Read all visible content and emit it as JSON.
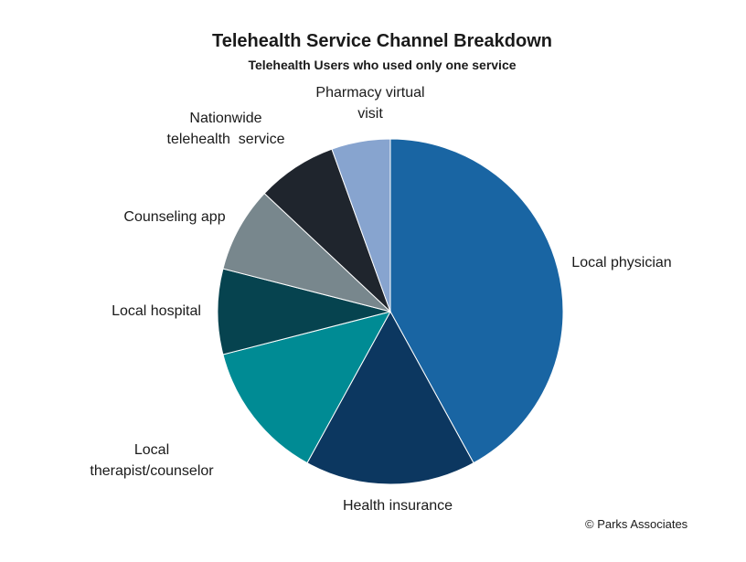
{
  "chart_data": {
    "type": "pie",
    "title": "Telehealth Service Channel Breakdown",
    "subtitle": "Telehealth Users who used only one service",
    "slices": [
      {
        "label": "Local physician",
        "lines": [
          "Local physician"
        ],
        "value": 42,
        "color": "#1965a3"
      },
      {
        "label": "Health insurance",
        "lines": [
          "Health insurance"
        ],
        "value": 16,
        "color": "#0c3760"
      },
      {
        "label": "Local therapist/counselor",
        "lines": [
          "Local",
          "therapist/counselor"
        ],
        "value": 13,
        "color": "#008b94"
      },
      {
        "label": "Local hospital",
        "lines": [
          "Local hospital"
        ],
        "value": 8,
        "color": "#06434f"
      },
      {
        "label": "Counseling app",
        "lines": [
          "Counseling app"
        ],
        "value": 8,
        "color": "#78878d"
      },
      {
        "label": "Nationwide telehealth service",
        "lines": [
          "Nationwide",
          "telehealth  service"
        ],
        "value": 7.5,
        "color": "#1f252d"
      },
      {
        "label": "Pharmacy virtual visit",
        "lines": [
          "Pharmacy virtual",
          "visit"
        ],
        "value": 5.5,
        "color": "#87a4cf"
      }
    ]
  },
  "footer": {
    "copyright": "© Parks Associates"
  }
}
